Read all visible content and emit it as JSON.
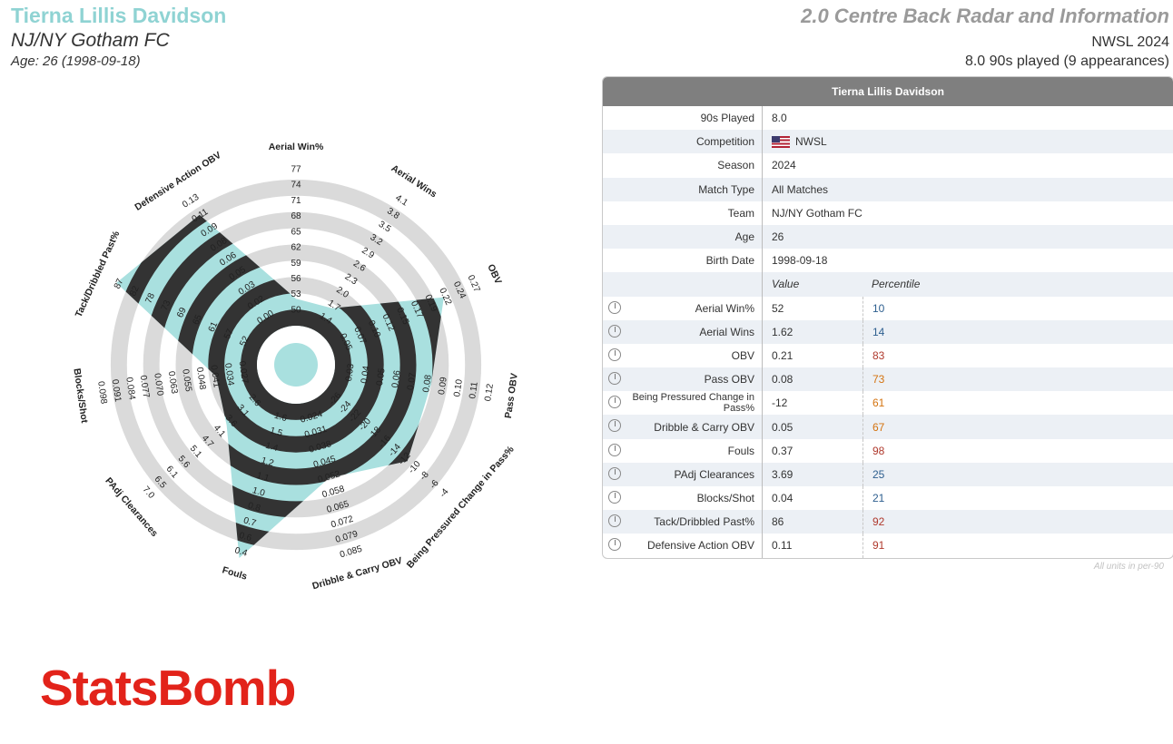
{
  "header": {
    "player_name": "Tierna Lillis Davidson",
    "team": "NJ/NY Gotham FC",
    "age_line": "Age: 26 (1998-09-18)",
    "radar_title": "2.0 Centre Back Radar and Information",
    "competition_line": "NWSL 2024",
    "played_line": "8.0 90s played (9 appearances)"
  },
  "colors": {
    "fill": "#a9e0df",
    "band": "#333333",
    "ring": "#dadada",
    "high_pct": "#b03a2e",
    "mid_pct": "#d4730f",
    "low_pct": "#2e5f8f"
  },
  "chart_data": {
    "type": "radar",
    "axes": [
      {
        "label": "Aerial Win%",
        "ticks": [
          "50",
          "53",
          "56",
          "59",
          "62",
          "65",
          "68",
          "71",
          "74",
          "77"
        ],
        "value": 52,
        "min": 47,
        "max": 77
      },
      {
        "label": "Aerial Wins",
        "ticks": [
          "1.4",
          "1.7",
          "2.0",
          "2.3",
          "2.6",
          "2.9",
          "3.2",
          "3.5",
          "3.8",
          "4.1"
        ],
        "value": 1.62,
        "min": 1.1,
        "max": 4.1
      },
      {
        "label": "OBV",
        "ticks": [
          "0.05",
          "0.07",
          "0.10",
          "0.12",
          "0.15",
          "0.17",
          "0.19",
          "0.22",
          "0.24",
          "0.27"
        ],
        "value": 0.21,
        "min": 0.02,
        "max": 0.27
      },
      {
        "label": "Pass OBV",
        "ticks": [
          "0.03",
          "0.04",
          "0.05",
          "0.06",
          "0.07",
          "0.08",
          "0.09",
          "0.10",
          "0.11",
          "0.12"
        ],
        "value": 0.08,
        "min": 0.02,
        "max": 0.12
      },
      {
        "label": "Being Pressured Change in Pass%",
        "ticks": [
          "-26",
          "-24",
          "-22",
          "-20",
          "-18",
          "-16",
          "-14",
          "-12",
          "-10",
          "-8",
          "-6",
          "-4"
        ],
        "value": -12,
        "min": -28,
        "max": -4
      },
      {
        "label": "Dribble & Carry OBV",
        "ticks": [
          "0.024",
          "0.031",
          "0.038",
          "0.045",
          "0.052",
          "0.058",
          "0.065",
          "0.072",
          "0.079",
          "0.085"
        ],
        "value": 0.05,
        "min": 0.017,
        "max": 0.085
      },
      {
        "label": "Fouls",
        "ticks": [
          "1.6",
          "1.5",
          "1.4",
          "1.2",
          "1.1",
          "1.0",
          "0.8",
          "0.7",
          "0.6",
          "0.4"
        ],
        "value": 0.37,
        "min": 1.7,
        "max": 0.4
      },
      {
        "label": "PAdj Clearances",
        "ticks": [
          "2.6",
          "3.1",
          "3.6",
          "4.1",
          "4.7",
          "5.1",
          "5.6",
          "6.1",
          "6.5",
          "7.0"
        ],
        "value": 3.69,
        "min": 2.1,
        "max": 7.0
      },
      {
        "label": "Blocks/Shot",
        "ticks": [
          "0.027",
          "0.034",
          "0.041",
          "0.048",
          "0.055",
          "0.063",
          "0.070",
          "0.077",
          "0.084",
          "0.091",
          "0.098"
        ],
        "value": 0.04,
        "min": 0.02,
        "max": 0.098
      },
      {
        "label": "Tack/Dribbled Past%",
        "ticks": [
          "52",
          "57",
          "61",
          "65",
          "69",
          "73",
          "78",
          "82",
          "87"
        ],
        "value": 86,
        "min": 48,
        "max": 87
      },
      {
        "label": "Defensive Action OBV",
        "ticks": [
          "0.00",
          "0.02",
          "0.03",
          "0.05",
          "0.06",
          "0.08",
          "0.09",
          "0.11",
          "0.13"
        ],
        "value": 0.11,
        "min": -0.01,
        "max": 0.13
      }
    ]
  },
  "table": {
    "title": "Tierna Lillis Davidson",
    "info": [
      {
        "label": "90s Played",
        "value": "8.0"
      },
      {
        "label": "Competition",
        "value": "NWSL",
        "flag": true
      },
      {
        "label": "Season",
        "value": "2024"
      },
      {
        "label": "Match Type",
        "value": "All Matches"
      },
      {
        "label": "Team",
        "value": "NJ/NY Gotham FC"
      },
      {
        "label": "Age",
        "value": "26"
      },
      {
        "label": "Birth Date",
        "value": "1998-09-18"
      }
    ],
    "value_header": "Value",
    "percentile_header": "Percentile",
    "stats": [
      {
        "label": "Aerial Win%",
        "value": "52",
        "percentile": "10"
      },
      {
        "label": "Aerial Wins",
        "value": "1.62",
        "percentile": "14"
      },
      {
        "label": "OBV",
        "value": "0.21",
        "percentile": "83"
      },
      {
        "label": "Pass OBV",
        "value": "0.08",
        "percentile": "73"
      },
      {
        "label": "Being Pressured Change in Pass%",
        "value": "-12",
        "percentile": "61"
      },
      {
        "label": "Dribble & Carry OBV",
        "value": "0.05",
        "percentile": "67"
      },
      {
        "label": "Fouls",
        "value": "0.37",
        "percentile": "98"
      },
      {
        "label": "PAdj Clearances",
        "value": "3.69",
        "percentile": "25"
      },
      {
        "label": "Blocks/Shot",
        "value": "0.04",
        "percentile": "21"
      },
      {
        "label": "Tack/Dribbled Past%",
        "value": "86",
        "percentile": "92"
      },
      {
        "label": "Defensive Action OBV",
        "value": "0.11",
        "percentile": "91"
      }
    ],
    "units_note": "All units in per-90"
  },
  "logo": {
    "text": "StatsBomb"
  }
}
